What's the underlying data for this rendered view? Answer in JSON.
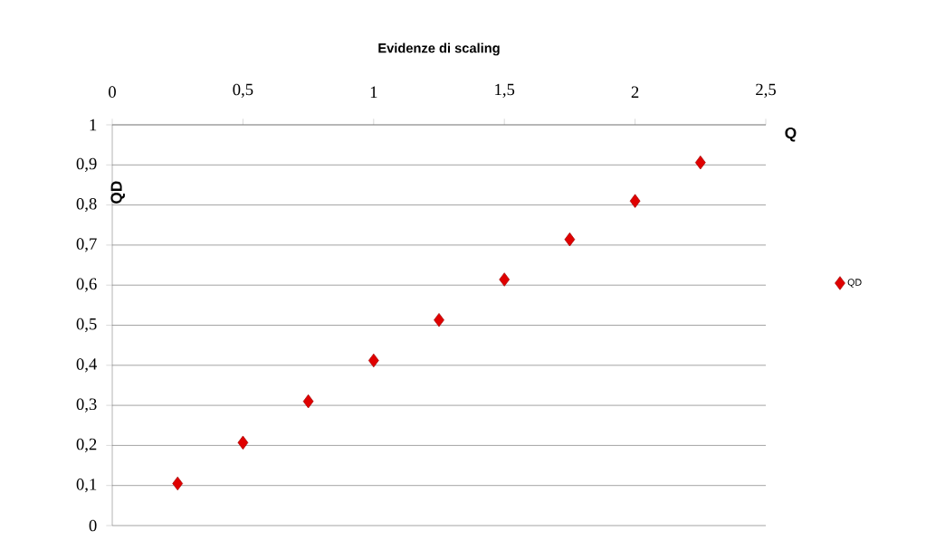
{
  "chart_data": {
    "type": "scatter",
    "title": "Evidenze di scaling",
    "xlabel": "Q",
    "ylabel": "QD",
    "x": [
      0.25,
      0.5,
      0.75,
      1,
      1.25,
      1.5,
      1.75,
      2,
      2.25
    ],
    "series": [
      {
        "name": "QD",
        "color": "#e00000",
        "values": [
          0.105,
          0.207,
          0.31,
          0.412,
          0.513,
          0.614,
          0.714,
          0.81,
          0.906
        ]
      }
    ],
    "xlim": [
      0,
      2.5
    ],
    "ylim": [
      0,
      1
    ],
    "xticks": [
      0,
      {
        "value": 0.5,
        "label": "0,5"
      },
      1,
      {
        "value": 1.5,
        "label": "1,5"
      },
      2,
      {
        "value": 2.5,
        "label": "2,5"
      }
    ],
    "yticks": [
      0,
      {
        "value": 0.1,
        "label": "0,1"
      },
      {
        "value": 0.2,
        "label": "0,2"
      },
      {
        "value": 0.3,
        "label": "0,3"
      },
      {
        "value": 0.4,
        "label": "0,4"
      },
      {
        "value": 0.5,
        "label": "0,5"
      },
      {
        "value": 0.6,
        "label": "0,6"
      },
      {
        "value": 0.7,
        "label": "0,7"
      },
      {
        "value": 0.8,
        "label": "0,8"
      },
      {
        "value": 0.9,
        "label": "0,9"
      },
      1
    ],
    "grid": "y",
    "legend": "right",
    "marker": "diamond"
  }
}
